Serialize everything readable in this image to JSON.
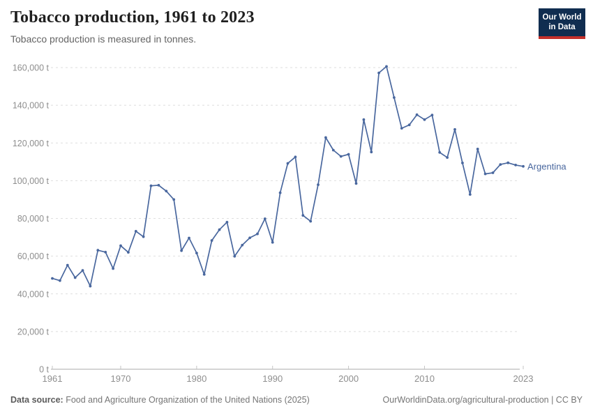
{
  "header": {
    "title": "Tobacco production, 1961 to 2023",
    "subtitle": "Tobacco production is measured in tonnes."
  },
  "logo": {
    "line1": "Our World",
    "line2": "in Data"
  },
  "colors": {
    "series_blue": "#49679e",
    "logo_navy": "#102d50",
    "logo_red": "#c4302b",
    "grid": "#dedede",
    "axis": "#a8a8a8",
    "tick": "#c4c4c4",
    "tick_label": "#8e8e8e"
  },
  "chart_data": {
    "type": "line",
    "title": "Tobacco production, 1961 to 2023",
    "subtitle": "Tobacco production is measured in tonnes.",
    "unit": "t",
    "xlabel": "",
    "ylabel": "",
    "grid": true,
    "legend_position": "end-of-line",
    "ylim": [
      0,
      160000
    ],
    "ytick_interval": 20000,
    "xticks": [
      1961,
      1970,
      1980,
      1990,
      2000,
      2010,
      2023
    ],
    "x": [
      1961,
      1962,
      1963,
      1964,
      1965,
      1966,
      1967,
      1968,
      1969,
      1970,
      1971,
      1972,
      1973,
      1974,
      1975,
      1976,
      1977,
      1978,
      1979,
      1980,
      1981,
      1982,
      1983,
      1984,
      1985,
      1986,
      1987,
      1988,
      1989,
      1990,
      1991,
      1992,
      1993,
      1994,
      1995,
      1996,
      1997,
      1998,
      1999,
      2000,
      2001,
      2002,
      2003,
      2004,
      2005,
      2006,
      2007,
      2008,
      2009,
      2010,
      2011,
      2012,
      2013,
      2014,
      2015,
      2016,
      2017,
      2018,
      2019,
      2020,
      2021,
      2022,
      2023
    ],
    "series": [
      {
        "name": "Argentina",
        "color": "#49679e",
        "values": [
          48200,
          47000,
          55200,
          48600,
          52400,
          44100,
          63100,
          62100,
          53400,
          65500,
          62000,
          73200,
          70300,
          97300,
          97600,
          94500,
          90000,
          62900,
          69600,
          61600,
          50300,
          68300,
          74000,
          78000,
          59900,
          65800,
          69700,
          71800,
          79800,
          67300,
          93600,
          109200,
          112600,
          81600,
          78500,
          97900,
          122900,
          116200,
          112900,
          114000,
          98500,
          132400,
          115200,
          157200,
          160600,
          144100,
          127800,
          129600,
          135000,
          132400,
          134800,
          115000,
          112300,
          127200,
          109400,
          92700,
          116800,
          103600,
          104200,
          108600,
          109500,
          108300,
          107600
        ]
      }
    ]
  },
  "footer": {
    "source_label": "Data source:",
    "source_text": "Food and Agriculture Organization of the United Nations (2025)",
    "right_text": "OurWorldinData.org/agricultural-production | CC BY"
  }
}
